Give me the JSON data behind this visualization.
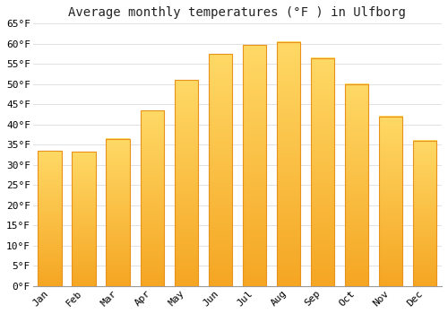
{
  "title": "Average monthly temperatures (°F ) in Ulfborg",
  "months": [
    "Jan",
    "Feb",
    "Mar",
    "Apr",
    "May",
    "Jun",
    "Jul",
    "Aug",
    "Sep",
    "Oct",
    "Nov",
    "Dec"
  ],
  "values": [
    33.5,
    33.3,
    36.5,
    43.5,
    51.0,
    57.5,
    59.7,
    60.5,
    56.5,
    50.0,
    42.0,
    36.0
  ],
  "bar_color_bottom": "#F5A623",
  "bar_color_top": "#FFD966",
  "bar_edge_color": "#E8921A",
  "background_color": "#ffffff",
  "grid_color": "#dddddd",
  "ylim": [
    0,
    65
  ],
  "yticks": [
    0,
    5,
    10,
    15,
    20,
    25,
    30,
    35,
    40,
    45,
    50,
    55,
    60,
    65
  ],
  "title_fontsize": 10,
  "tick_fontsize": 8,
  "font_family": "monospace"
}
